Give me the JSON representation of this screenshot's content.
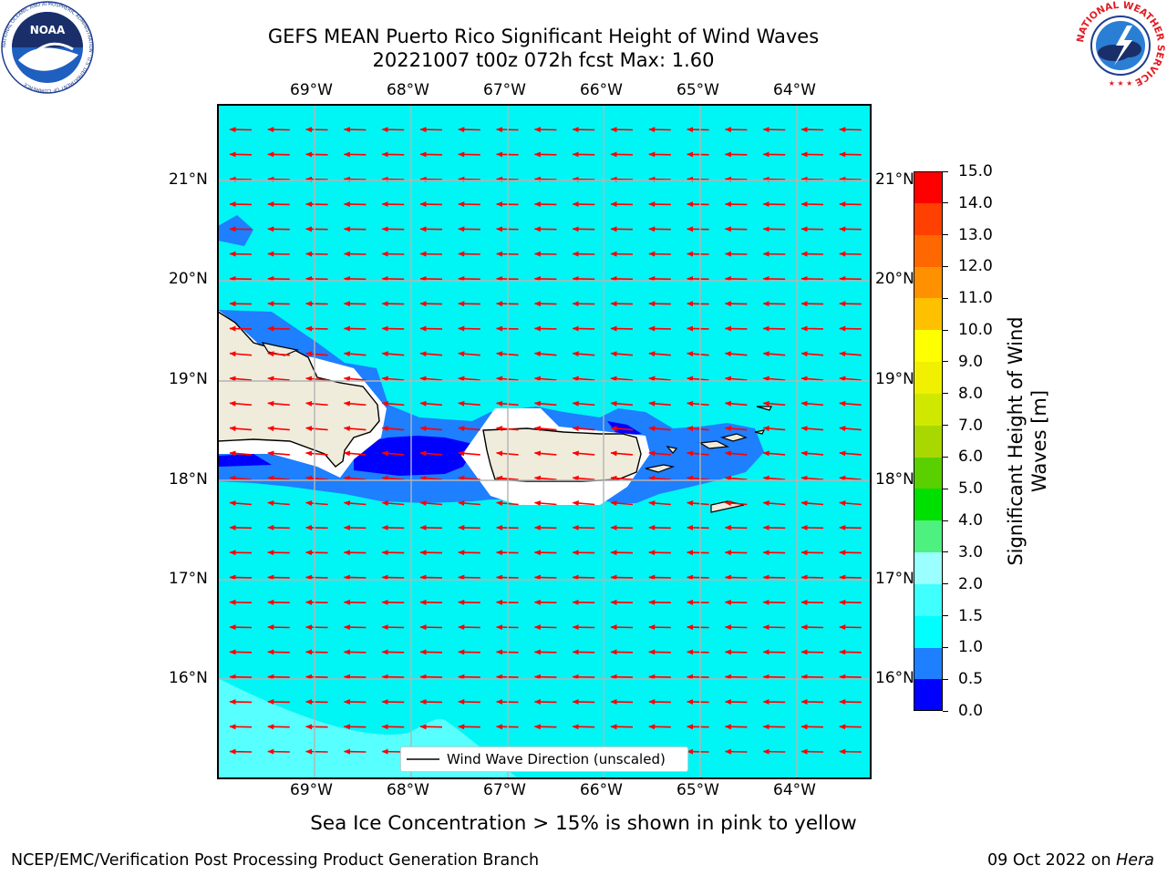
{
  "header": {
    "title_line1": "GEFS MEAN Puerto Rico Significant Height of Wind Waves",
    "title_line2": "20221007 t00z 072h fcst   Max: 1.60"
  },
  "logos": {
    "noaa_text": "NOAA",
    "noaa_ring": "NATIONAL OCEANIC AND ATMOSPHERIC ADMINISTRATION · U.S. DEPARTMENT OF COMMERCE",
    "nws_ring": "NATIONAL WEATHER SERVICE"
  },
  "map": {
    "lon_labels": [
      "69°W",
      "68°W",
      "67°W",
      "66°W",
      "65°W",
      "64°W"
    ],
    "lat_labels": [
      "21°N",
      "20°N",
      "19°N",
      "18°N",
      "17°N",
      "16°N"
    ],
    "legend_text": "Wind Wave Direction (unscaled)",
    "ocean_color": "#00f5f5",
    "arrow_color": "#ff0000",
    "land_color": "#efecdc"
  },
  "colorbar": {
    "ticks": [
      "15.0",
      "14.0",
      "13.0",
      "12.0",
      "11.0",
      "10.0",
      "9.0",
      "8.0",
      "7.0",
      "6.0",
      "5.0",
      "4.0",
      "3.0",
      "2.0",
      "1.5",
      "1.0",
      "0.5",
      "0.0"
    ],
    "colors": [
      "#0000ff",
      "#1e7fff",
      "#00ffff",
      "#40ffff",
      "#9cffff",
      "#4ef07f",
      "#00e000",
      "#5ad000",
      "#a8d800",
      "#d0e800",
      "#f0f000",
      "#ffff00",
      "#ffc000",
      "#ff9000",
      "#ff6800",
      "#ff4000",
      "#ff0000"
    ],
    "label": "Significant Height of Wind Waves [m]"
  },
  "footer": {
    "sea_ice_note": "Sea Ice Concentration > 15% is shown in pink to yellow",
    "credit": "NCEP/EMC/Verification Post Processing Product Generation Branch",
    "date": "09 Oct 2022 on ",
    "host": "Hera"
  }
}
